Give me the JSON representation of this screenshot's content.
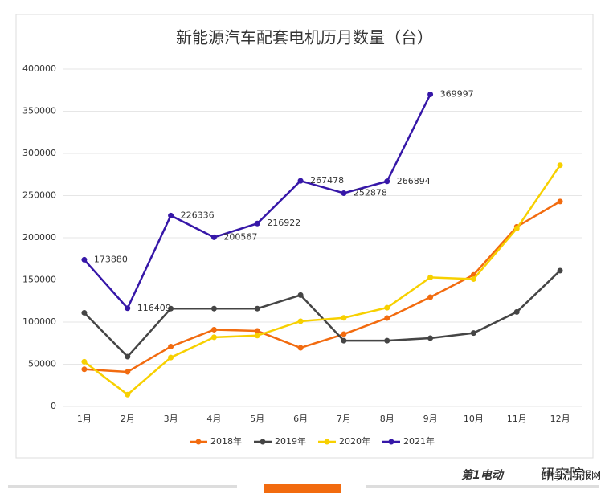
{
  "chart_data": {
    "type": "line",
    "title": "新能源汽车配套电机历月数量（台）",
    "categories": [
      "1月",
      "2月",
      "3月",
      "4月",
      "5月",
      "6月",
      "7月",
      "8月",
      "9月",
      "10月",
      "11月",
      "12月"
    ],
    "series": [
      {
        "name": "2018年",
        "color": "#f26b0f",
        "values": [
          44000,
          41000,
          71000,
          91000,
          89500,
          69500,
          85700,
          104800,
          129500,
          156000,
          213000,
          243000
        ]
      },
      {
        "name": "2019年",
        "color": "#454545",
        "values": [
          111000,
          59000,
          116000,
          116000,
          116000,
          132000,
          78000,
          78000,
          81000,
          87000,
          112000,
          161000
        ]
      },
      {
        "name": "2020年",
        "color": "#f7d000",
        "values": [
          53000,
          14000,
          58000,
          82000,
          84000,
          101000,
          105000,
          117000,
          153000,
          151000,
          211000,
          286000
        ]
      },
      {
        "name": "2021年",
        "color": "#3617a8",
        "data_labels": true,
        "values": [
          173880,
          116409,
          226336,
          200567,
          216922,
          267478,
          252878,
          266894,
          369997,
          null,
          null,
          null
        ]
      }
    ],
    "ylim": [
      0,
      400000
    ],
    "yticks": [
      0,
      50000,
      100000,
      150000,
      200000,
      250000,
      300000,
      350000,
      400000
    ],
    "grid": true,
    "legend": "bottom"
  },
  "footer": {
    "logo": "第1电动",
    "brand": "研究院",
    "watermark": "中国汽车报网"
  }
}
